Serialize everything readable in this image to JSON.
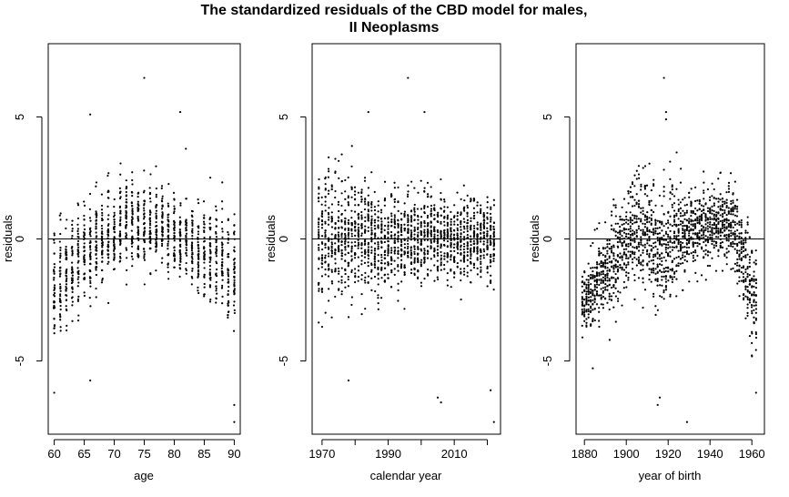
{
  "figure": {
    "title_line1": "The standardized residuals of the CBD model for males,",
    "title_line2": "II Neoplasms",
    "point_color": "#000000",
    "line_color": "#000000"
  },
  "chart_data": [
    {
      "type": "scatter",
      "xlabel": "age",
      "ylabel": "residuals",
      "xlim": [
        59,
        91
      ],
      "ylim": [
        -8,
        8
      ],
      "xticks": [
        60,
        65,
        70,
        75,
        80,
        85,
        90
      ],
      "xtick_labels": [
        "60",
        "65",
        "70",
        "75",
        "80",
        "85",
        "90"
      ],
      "yticks": [
        -5,
        0,
        5
      ],
      "ytick_labels": [
        "-5",
        "0",
        "5"
      ],
      "reference_line_y": 0,
      "x_range": [
        60,
        90
      ],
      "x_step": 1,
      "points_per_x": 40,
      "mean_profile": [
        [
          60,
          -1.8
        ],
        [
          65,
          -0.5
        ],
        [
          72,
          0.8
        ],
        [
          78,
          0.5
        ],
        [
          84,
          -0.5
        ],
        [
          90,
          -1.5
        ]
      ],
      "spread_profile": [
        [
          60,
          2.0
        ],
        [
          66,
          1.8
        ],
        [
          75,
          1.6
        ],
        [
          84,
          1.5
        ],
        [
          90,
          2.2
        ]
      ],
      "extreme_points": [
        {
          "x": 75,
          "y": 6.6
        },
        {
          "x": 81,
          "y": 5.2
        },
        {
          "x": 66,
          "y": 5.1
        },
        {
          "x": 90,
          "y": -7.5
        },
        {
          "x": 90,
          "y": -6.8
        },
        {
          "x": 60,
          "y": -6.3
        },
        {
          "x": 66,
          "y": -5.8
        }
      ]
    },
    {
      "type": "scatter",
      "xlabel": "calendar year",
      "ylabel": "residuals",
      "xlim": [
        1967,
        2024
      ],
      "ylim": [
        -8,
        8
      ],
      "xticks": [
        1970,
        1990,
        2010
      ],
      "xtick_labels": [
        "1970",
        "1990",
        "2010"
      ],
      "minor_xticks": [
        1980,
        2000,
        2020
      ],
      "yticks": [
        -5,
        0,
        5
      ],
      "ytick_labels": [
        "-5",
        "0",
        "5"
      ],
      "reference_line_y": 0,
      "x_range": [
        1969,
        2022
      ],
      "x_step": 1,
      "points_per_x": 31,
      "mean_profile": [
        [
          1969,
          0
        ],
        [
          2022,
          0
        ]
      ],
      "spread_profile": [
        [
          1969,
          2.4
        ],
        [
          1985,
          2.0
        ],
        [
          2000,
          1.6
        ],
        [
          2022,
          1.5
        ]
      ],
      "extreme_points": [
        {
          "x": 1996,
          "y": 6.6
        },
        {
          "x": 2001,
          "y": 5.2
        },
        {
          "x": 1984,
          "y": 5.2
        },
        {
          "x": 2005,
          "y": -6.5
        },
        {
          "x": 2006,
          "y": -6.7
        },
        {
          "x": 2022,
          "y": -7.5
        },
        {
          "x": 2021,
          "y": -6.2
        },
        {
          "x": 1978,
          "y": -5.8
        }
      ]
    },
    {
      "type": "scatter",
      "xlabel": "year of birth",
      "ylabel": "residuals",
      "xlim": [
        1876,
        1966
      ],
      "ylim": [
        -8,
        8
      ],
      "xticks": [
        1880,
        1900,
        1920,
        1940,
        1960
      ],
      "xtick_labels": [
        "1880",
        "1900",
        "1920",
        "1940",
        "1960"
      ],
      "yticks": [
        -5,
        0,
        5
      ],
      "ytick_labels": [
        "-5",
        "0",
        "5"
      ],
      "reference_line_y": 0,
      "x_range": [
        1879,
        1962
      ],
      "x_step": 1,
      "points_per_x": 20,
      "mean_profile": [
        [
          1879,
          -2.5
        ],
        [
          1890,
          -1.5
        ],
        [
          1905,
          0.6
        ],
        [
          1915,
          -0.5
        ],
        [
          1930,
          0.3
        ],
        [
          1950,
          0.8
        ],
        [
          1962,
          -2.5
        ]
      ],
      "spread_profile": [
        [
          1879,
          1.2
        ],
        [
          1905,
          2.0
        ],
        [
          1918,
          2.4
        ],
        [
          1930,
          1.5
        ],
        [
          1945,
          1.3
        ],
        [
          1962,
          1.8
        ]
      ],
      "extreme_points": [
        {
          "x": 1918,
          "y": 6.6
        },
        {
          "x": 1919,
          "y": 5.2
        },
        {
          "x": 1919,
          "y": 4.9
        },
        {
          "x": 1929,
          "y": -7.5
        },
        {
          "x": 1915,
          "y": -6.8
        },
        {
          "x": 1916,
          "y": -6.5
        },
        {
          "x": 1962,
          "y": -6.3
        },
        {
          "x": 1884,
          "y": -5.3
        }
      ]
    }
  ]
}
